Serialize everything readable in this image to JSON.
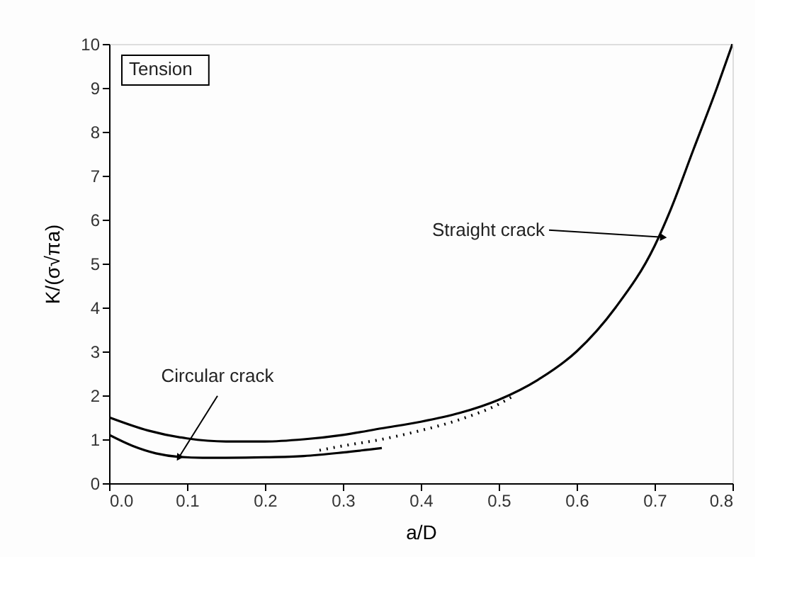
{
  "chart_data": {
    "type": "line",
    "xlabel": "a/D",
    "ylabel": "K/(σ√πa)",
    "xlim": [
      0,
      0.8
    ],
    "ylim": [
      0,
      10
    ],
    "xticks": [
      {
        "value": 0,
        "label": "0.0"
      },
      0.1,
      0.2,
      0.3,
      0.4,
      0.5,
      0.6,
      0.7,
      0.8
    ],
    "yticks": [
      0,
      1,
      2,
      3,
      4,
      5,
      6,
      7,
      8,
      9,
      10
    ],
    "grid": false,
    "legend": false,
    "marker": "none",
    "series": [
      {
        "color": "#000000",
        "line_style": "solid",
        "x": [
          0,
          0.05,
          0.1,
          0.15,
          0.2,
          0.25,
          0.3,
          0.35,
          0.4,
          0.45,
          0.5,
          0.55,
          0.6,
          0.65,
          0.7,
          0.72,
          0.75,
          0.78,
          0.8
        ],
        "values": [
          1.5,
          1.2,
          1.02,
          0.95,
          0.95,
          1.0,
          1.1,
          1.25,
          1.4,
          1.6,
          1.9,
          2.35,
          3.0,
          4.0,
          5.4,
          6.2,
          7.6,
          9.0,
          10.0
        ]
      },
      {
        "color": "#000000",
        "line_style": "solid",
        "x": [
          0,
          0.03,
          0.06,
          0.09,
          0.12,
          0.15,
          0.2,
          0.25,
          0.3,
          0.35
        ],
        "values": [
          1.1,
          0.85,
          0.68,
          0.6,
          0.58,
          0.58,
          0.59,
          0.62,
          0.7,
          0.8
        ]
      },
      {
        "color": "#000000",
        "line_style": "dotted",
        "x": [
          0.27,
          0.3,
          0.35,
          0.4,
          0.45,
          0.5,
          0.52
        ],
        "values": [
          0.75,
          0.85,
          1.0,
          1.2,
          1.45,
          1.8,
          2.0
        ]
      }
    ],
    "annotations": [
      "Tension",
      {
        "text": "Circular crack",
        "x": 0.09,
        "y": 0.6
      },
      {
        "text": "Straight crack",
        "x": 0.71,
        "y": 5.6
      }
    ]
  }
}
